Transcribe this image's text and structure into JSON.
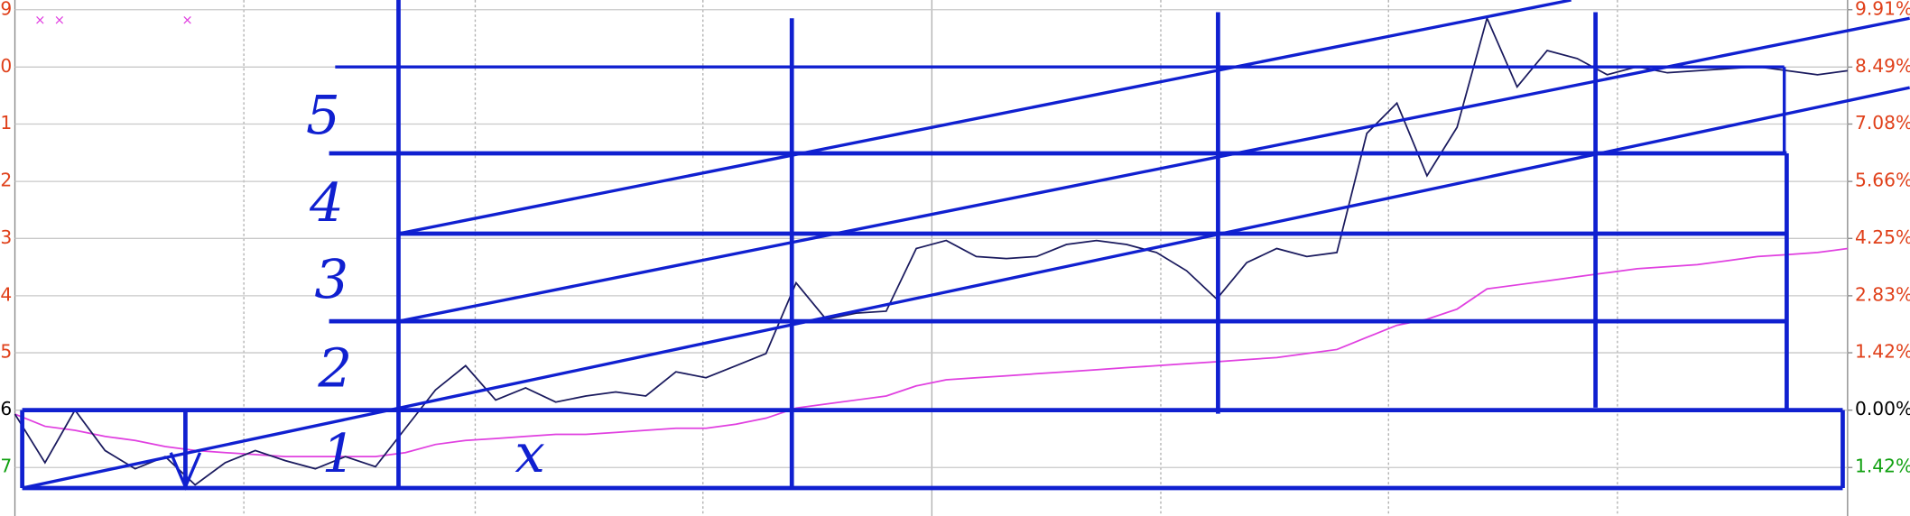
{
  "chart_data": {
    "type": "line",
    "ylim": [
      -2.62,
      10.15
    ],
    "yticks": [
      {
        "value": 9.91,
        "label": "9.91%"
      },
      {
        "value": 8.49,
        "label": "8.49%"
      },
      {
        "value": 7.08,
        "label": "7.08%"
      },
      {
        "value": 5.66,
        "label": "5.66%"
      },
      {
        "value": 4.25,
        "label": "4.25%"
      },
      {
        "value": 2.83,
        "label": "2.83%"
      },
      {
        "value": 1.42,
        "label": "1.42%"
      },
      {
        "value": 0,
        "label": "0.00%"
      },
      {
        "value": -1.42,
        "label": "1.42%"
      }
    ],
    "left_axis_labels": [
      {
        "text": "9",
        "color": "#e0401a"
      },
      {
        "text": "0",
        "color": "#e0401a"
      },
      {
        "text": "1",
        "color": "#e0401a"
      },
      {
        "text": "2",
        "color": "#e0401a"
      },
      {
        "text": "3",
        "color": "#e0401a"
      },
      {
        "text": "4",
        "color": "#e0401a"
      },
      {
        "text": "5",
        "color": "#e0401a"
      },
      {
        "text": "6",
        "color": "#000000"
      },
      {
        "text": "7",
        "color": "#10a010"
      }
    ],
    "grid": true,
    "series": [
      {
        "color": "#1a1a5e",
        "values": [
          -0.1,
          -1.3,
          0,
          -1.0,
          -1.45,
          -1.15,
          -1.85,
          -1.3,
          -1.0,
          -1.25,
          -1.45,
          -1.15,
          -1.4,
          -0.45,
          0.5,
          1.1,
          0.25,
          0.55,
          0.2,
          0.35,
          0.45,
          0.35,
          0.95,
          0.8,
          1.1,
          1.4,
          3.15,
          2.25,
          2.4,
          2.45,
          4.0,
          4.2,
          3.8,
          3.75,
          3.8,
          4.1,
          4.2,
          4.1,
          3.9,
          3.45,
          2.75,
          3.65,
          4.0,
          3.8,
          3.9,
          6.85,
          7.6,
          5.8,
          7.0,
          9.7,
          8.0,
          8.9,
          8.7,
          8.3,
          8.5,
          8.35,
          8.4,
          8.45,
          8.5,
          8.4,
          8.3,
          8.4
        ]
      },
      {
        "color": "#e040e0",
        "values": [
          -0.1,
          -0.4,
          -0.5,
          -0.65,
          -0.75,
          -0.9,
          -1.0,
          -1.05,
          -1.1,
          -1.15,
          -1.15,
          -1.15,
          -1.15,
          -1.05,
          -0.85,
          -0.75,
          -0.7,
          -0.65,
          -0.6,
          -0.6,
          -0.55,
          -0.5,
          -0.45,
          -0.45,
          -0.35,
          -0.2,
          0.05,
          0.15,
          0.25,
          0.35,
          0.6,
          0.75,
          0.8,
          0.85,
          0.9,
          0.95,
          1.0,
          1.05,
          1.1,
          1.15,
          1.2,
          1.25,
          1.3,
          1.4,
          1.5,
          1.8,
          2.1,
          2.25,
          2.5,
          3.0,
          3.1,
          3.2,
          3.3,
          3.4,
          3.5,
          3.55,
          3.6,
          3.7,
          3.8,
          3.85,
          3.9,
          4.0
        ]
      }
    ],
    "annotations": [
      "5",
      "4",
      "3",
      "2",
      "1",
      "x"
    ]
  }
}
